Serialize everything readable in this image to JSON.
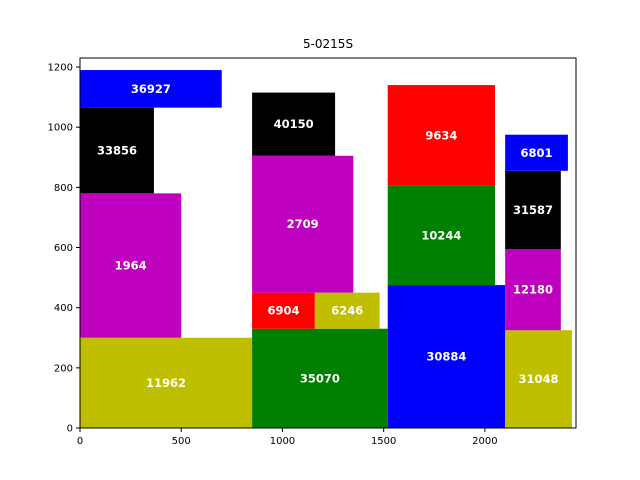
{
  "chart_data": {
    "type": "bar",
    "subtype": "rectangle-packing",
    "title": "5-0215S",
    "xlabel": "",
    "ylabel": "",
    "xlim": [
      0,
      2450
    ],
    "ylim": [
      0,
      1230
    ],
    "xticks": [
      0,
      500,
      1000,
      1500,
      2000
    ],
    "yticks": [
      0,
      200,
      400,
      600,
      800,
      1000,
      1200
    ],
    "grid": false,
    "legend": "none",
    "colors": {
      "blue": "#0000ff",
      "black": "#000000",
      "magenta": "#bf00bf",
      "olive": "#bfbf00",
      "red": "#ff0000",
      "green": "#008000"
    },
    "rectangles": [
      {
        "label": "11962",
        "x0": 0,
        "x1": 850,
        "y0": 0,
        "y1": 300,
        "color": "#bfbf00"
      },
      {
        "label": "1964",
        "x0": 0,
        "x1": 500,
        "y0": 300,
        "y1": 780,
        "color": "#bf00bf"
      },
      {
        "label": "33856",
        "x0": 0,
        "x1": 365,
        "y0": 780,
        "y1": 1065,
        "color": "#000000"
      },
      {
        "label": "36927",
        "x0": 0,
        "x1": 700,
        "y0": 1065,
        "y1": 1190,
        "color": "#0000ff"
      },
      {
        "label": "35070",
        "x0": 850,
        "x1": 1520,
        "y0": 0,
        "y1": 330,
        "color": "#008000"
      },
      {
        "label": "6904",
        "x0": 850,
        "x1": 1160,
        "y0": 330,
        "y1": 450,
        "color": "#ff0000"
      },
      {
        "label": "6246",
        "x0": 1160,
        "x1": 1480,
        "y0": 330,
        "y1": 450,
        "color": "#bfbf00"
      },
      {
        "label": "2709",
        "x0": 850,
        "x1": 1350,
        "y0": 450,
        "y1": 905,
        "color": "#bf00bf"
      },
      {
        "label": "40150",
        "x0": 850,
        "x1": 1260,
        "y0": 905,
        "y1": 1115,
        "color": "#000000"
      },
      {
        "label": "30884",
        "x0": 1520,
        "x1": 2100,
        "y0": 0,
        "y1": 475,
        "color": "#0000ff"
      },
      {
        "label": "10244",
        "x0": 1520,
        "x1": 2050,
        "y0": 475,
        "y1": 805,
        "color": "#008000"
      },
      {
        "label": "9634",
        "x0": 1520,
        "x1": 2050,
        "y0": 805,
        "y1": 1140,
        "color": "#ff0000"
      },
      {
        "label": "31048",
        "x0": 2100,
        "x1": 2430,
        "y0": 0,
        "y1": 325,
        "color": "#bfbf00"
      },
      {
        "label": "12180",
        "x0": 2100,
        "x1": 2375,
        "y0": 325,
        "y1": 595,
        "color": "#bf00bf"
      },
      {
        "label": "31587",
        "x0": 2100,
        "x1": 2375,
        "y0": 595,
        "y1": 855,
        "color": "#000000"
      },
      {
        "label": "6801",
        "x0": 2100,
        "x1": 2410,
        "y0": 855,
        "y1": 975,
        "color": "#0000ff"
      }
    ]
  }
}
